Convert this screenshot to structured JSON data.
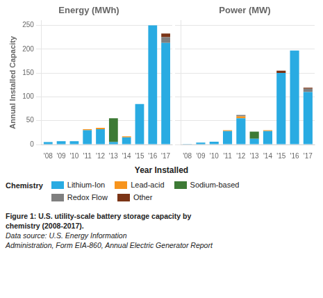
{
  "chart_data": [
    {
      "type": "bar",
      "stacked": true,
      "title": "Energy (MWh)",
      "ylabel": "Annual Installed Capacity",
      "categories": [
        "'08",
        "'09",
        "'10",
        "'11",
        "'12",
        "'13",
        "'14",
        "'15",
        "'16",
        "'17"
      ],
      "series": [
        {
          "name": "Lithium-Ion",
          "color": "#29ABE2",
          "values": [
            5,
            7,
            7,
            30,
            32,
            5,
            15,
            85,
            250,
            213
          ]
        },
        {
          "name": "Lead-acid",
          "color": "#F7941D",
          "values": [
            0,
            0,
            0,
            2,
            3,
            0,
            2,
            0,
            0,
            0
          ]
        },
        {
          "name": "Sodium-based",
          "color": "#3D7A35",
          "values": [
            0,
            0,
            0,
            0,
            0,
            50,
            0,
            0,
            0,
            0
          ]
        },
        {
          "name": "Redox Flow",
          "color": "#7F7F7F",
          "values": [
            0,
            0,
            0,
            0,
            0,
            0,
            0,
            0,
            0,
            12
          ]
        },
        {
          "name": "Other",
          "color": "#7B3416",
          "values": [
            0,
            0,
            0,
            0,
            0,
            0,
            0,
            0,
            0,
            8
          ]
        }
      ],
      "ylim": [
        0,
        260
      ],
      "yticks": [
        0,
        50,
        100,
        150,
        200,
        250
      ],
      "grid": true
    },
    {
      "type": "bar",
      "stacked": true,
      "title": "Power (MW)",
      "categories": [
        "'08",
        "'09",
        "'10",
        "'11",
        "'12",
        "'13",
        "'14",
        "'15",
        "'16",
        "'17"
      ],
      "series": [
        {
          "name": "Lithium-Ion",
          "color": "#29ABE2",
          "values": [
            1,
            4,
            6,
            28,
            55,
            12,
            28,
            150,
            197,
            110
          ]
        },
        {
          "name": "Lead-acid",
          "color": "#F7941D",
          "values": [
            0,
            0,
            0,
            2,
            4,
            0,
            2,
            0,
            0,
            0
          ]
        },
        {
          "name": "Sodium-based",
          "color": "#3D7A35",
          "values": [
            0,
            0,
            0,
            0,
            0,
            15,
            0,
            0,
            0,
            0
          ]
        },
        {
          "name": "Redox Flow",
          "color": "#7F7F7F",
          "values": [
            0,
            0,
            0,
            0,
            3,
            0,
            0,
            0,
            0,
            7
          ]
        },
        {
          "name": "Other",
          "color": "#7B3416",
          "values": [
            0,
            0,
            0,
            0,
            0,
            0,
            0,
            5,
            0,
            2
          ]
        }
      ],
      "ylim": [
        0,
        260
      ],
      "yticks": [
        0,
        50,
        100,
        150,
        200,
        250
      ],
      "grid": true,
      "tick_labels": "x"
    }
  ],
  "xlabel": "Year Installed",
  "legend": "bottom",
  "legend_title": "Chemistry",
  "annotations": [
    "Figure 1: U.S. utility-scale battery storage capacity by\nchemistry (2008-2017).",
    "Data source: U.S. Energy Information\nAdministration, Form EIA-860, ",
    "Annual Electric Generator Report"
  ]
}
